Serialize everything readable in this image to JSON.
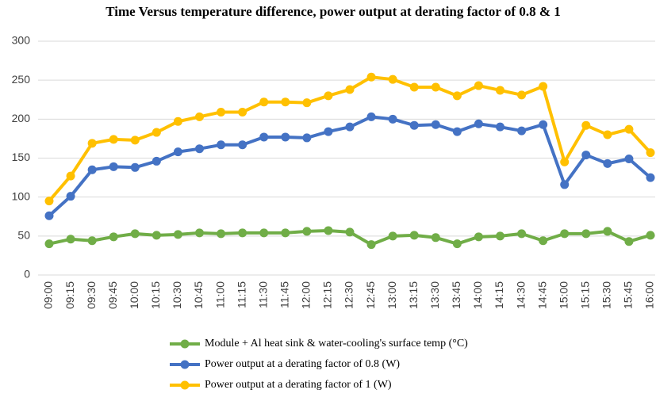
{
  "chart_data": {
    "type": "line",
    "title": "Time Versus temperature difference, power output at derating factor of 0.8 & 1",
    "categories": [
      "09:00",
      "09:15",
      "09:30",
      "09:45",
      "10:00",
      "10:15",
      "10:30",
      "10:45",
      "11:00",
      "11:15",
      "11:30",
      "11:45",
      "12:00",
      "12:15",
      "12:30",
      "12:45",
      "13:00",
      "13:15",
      "13:30",
      "13:45",
      "14:00",
      "14:15",
      "14:30",
      "14:45",
      "15:00",
      "15:15",
      "15:30",
      "15:45",
      "16:00"
    ],
    "series": [
      {
        "name": "Module + Al heat sink & water-cooling's surface temp (°C)",
        "color": "#70ad47",
        "values": [
          40,
          46,
          44,
          49,
          53,
          51,
          52,
          54,
          53,
          54,
          54,
          54,
          56,
          57,
          55,
          39,
          50,
          51,
          48,
          40,
          49,
          50,
          53,
          44,
          53,
          53,
          56,
          43,
          51
        ]
      },
      {
        "name": "Power output at a derating factor of 0.8 (W)",
        "color": "#4472c4",
        "values": [
          76,
          101,
          135,
          139,
          138,
          146,
          158,
          162,
          167,
          167,
          177,
          177,
          176,
          184,
          190,
          203,
          200,
          192,
          193,
          184,
          194,
          190,
          185,
          193,
          116,
          154,
          143,
          149,
          125
        ]
      },
      {
        "name": "Power output at a derating factor of 1 (W)",
        "color": "#ffc000",
        "values": [
          95,
          127,
          169,
          174,
          173,
          183,
          197,
          203,
          209,
          209,
          222,
          222,
          221,
          230,
          238,
          254,
          251,
          241,
          241,
          230,
          243,
          237,
          231,
          242,
          145,
          192,
          180,
          187,
          157
        ]
      }
    ],
    "ylim": [
      0,
      300
    ],
    "yticks": [
      0,
      50,
      100,
      150,
      200,
      250,
      300
    ],
    "grid": true
  }
}
